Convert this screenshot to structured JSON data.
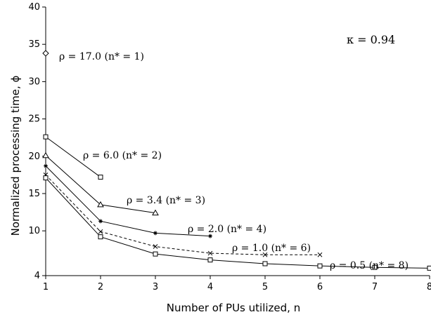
{
  "chart_data": {
    "type": "line",
    "title": "",
    "xlabel": "Number of PUs utilized, n",
    "ylabel": "Normalized processing time, ϕ",
    "xlim": [
      1,
      8
    ],
    "ylim": [
      4,
      40
    ],
    "x_ticks": [
      1,
      2,
      3,
      4,
      5,
      6,
      7,
      8
    ],
    "y_ticks": [
      4,
      10,
      15,
      20,
      25,
      30,
      35,
      40
    ],
    "grid": false,
    "legend": "none",
    "parameter_label": "κ = 0.94",
    "series": [
      {
        "rho": 17.0,
        "nstar": 1,
        "label": "ρ = 17.0 (n* = 1)",
        "marker": "diamond",
        "dash": false,
        "x": [
          1
        ],
        "y": [
          33.8
        ]
      },
      {
        "rho": 6.0,
        "nstar": 2,
        "label": "ρ = 6.0 (n* = 2)",
        "marker": "square",
        "dash": false,
        "x": [
          1,
          2
        ],
        "y": [
          22.6,
          17.2
        ]
      },
      {
        "rho": 3.4,
        "nstar": 3,
        "label": "ρ = 3.4 (n* = 3)",
        "marker": "triangle",
        "dash": false,
        "x": [
          1,
          2,
          3
        ],
        "y": [
          20.1,
          13.5,
          12.4
        ]
      },
      {
        "rho": 2.0,
        "nstar": 4,
        "label": "ρ = 2.0 (n* = 4)",
        "marker": "star",
        "dash": false,
        "x": [
          1,
          2,
          3,
          4
        ],
        "y": [
          18.7,
          11.3,
          9.7,
          9.3
        ]
      },
      {
        "rho": 1.0,
        "nstar": 6,
        "label": "ρ = 1.0 (n* = 6)",
        "marker": "x",
        "dash": true,
        "x": [
          1,
          2,
          3,
          4,
          5,
          6
        ],
        "y": [
          17.5,
          9.9,
          7.9,
          7.0,
          6.8,
          6.8
        ]
      },
      {
        "rho": 0.5,
        "nstar": 8,
        "label": "ρ = 0.5 (n* = 8)",
        "marker": "square",
        "dash": false,
        "x": [
          1,
          2,
          3,
          4,
          5,
          6,
          7,
          8
        ],
        "y": [
          17.1,
          9.2,
          6.9,
          6.1,
          5.6,
          5.3,
          5.1,
          5.0
        ]
      }
    ],
    "colors": {
      "line": "#000000",
      "background": "#ffffff"
    }
  }
}
